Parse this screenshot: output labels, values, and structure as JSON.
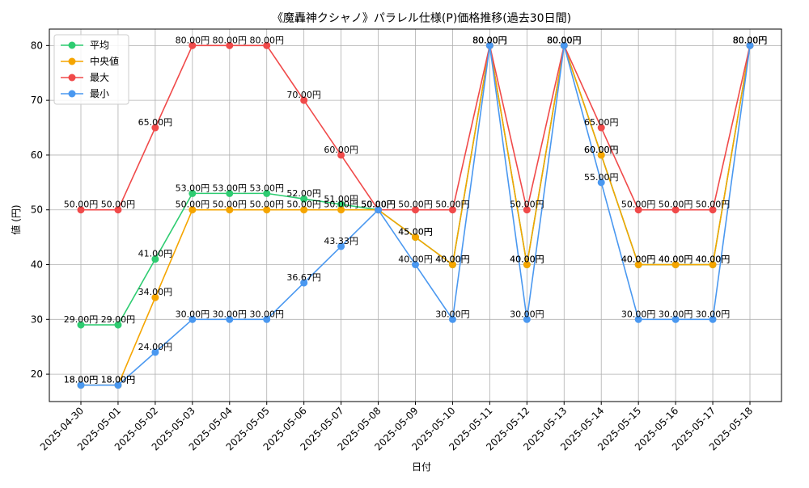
{
  "chart_data": {
    "type": "line",
    "title": "《魔轟神クシャノ》パラレル仕様(P)価格推移(過去30日間)",
    "xlabel": "日付",
    "ylabel": "値 (円)",
    "ylim": [
      15,
      83
    ],
    "yticks": [
      20,
      30,
      40,
      50,
      60,
      70,
      80
    ],
    "grid": true,
    "legend_position": "top-left",
    "label_suffix": "円",
    "categories": [
      "2025-04-30",
      "2025-05-01",
      "2025-05-02",
      "2025-05-03",
      "2025-05-04",
      "2025-05-05",
      "2025-05-06",
      "2025-05-07",
      "2025-05-08",
      "2025-05-09",
      "2025-05-10",
      "2025-05-11",
      "2025-05-12",
      "2025-05-13",
      "2025-05-14",
      "2025-05-15",
      "2025-05-16",
      "2025-05-17",
      "2025-05-18"
    ],
    "series": [
      {
        "name": "平均",
        "color": "#2ecc71",
        "values": [
          29,
          29,
          41,
          53,
          53,
          53,
          52,
          51,
          50,
          45,
          40,
          80,
          40,
          80,
          60,
          40,
          40,
          40,
          80
        ]
      },
      {
        "name": "中央値",
        "color": "#f5a500",
        "values": [
          18,
          18,
          34,
          50,
          50,
          50,
          50,
          50,
          50,
          45,
          40,
          80,
          40,
          80,
          60,
          40,
          40,
          40,
          80
        ]
      },
      {
        "name": "最大",
        "color": "#f04a4a",
        "values": [
          50,
          50,
          65,
          80,
          80,
          80,
          70,
          60,
          50,
          50,
          50,
          80,
          50,
          80,
          65,
          50,
          50,
          50,
          80
        ]
      },
      {
        "name": "最小",
        "color": "#4a98f0",
        "values": [
          18,
          18,
          24,
          30,
          30,
          30,
          36.67,
          43.33,
          50,
          40,
          30,
          80,
          30,
          80,
          55,
          30,
          30,
          30,
          80
        ]
      }
    ]
  }
}
